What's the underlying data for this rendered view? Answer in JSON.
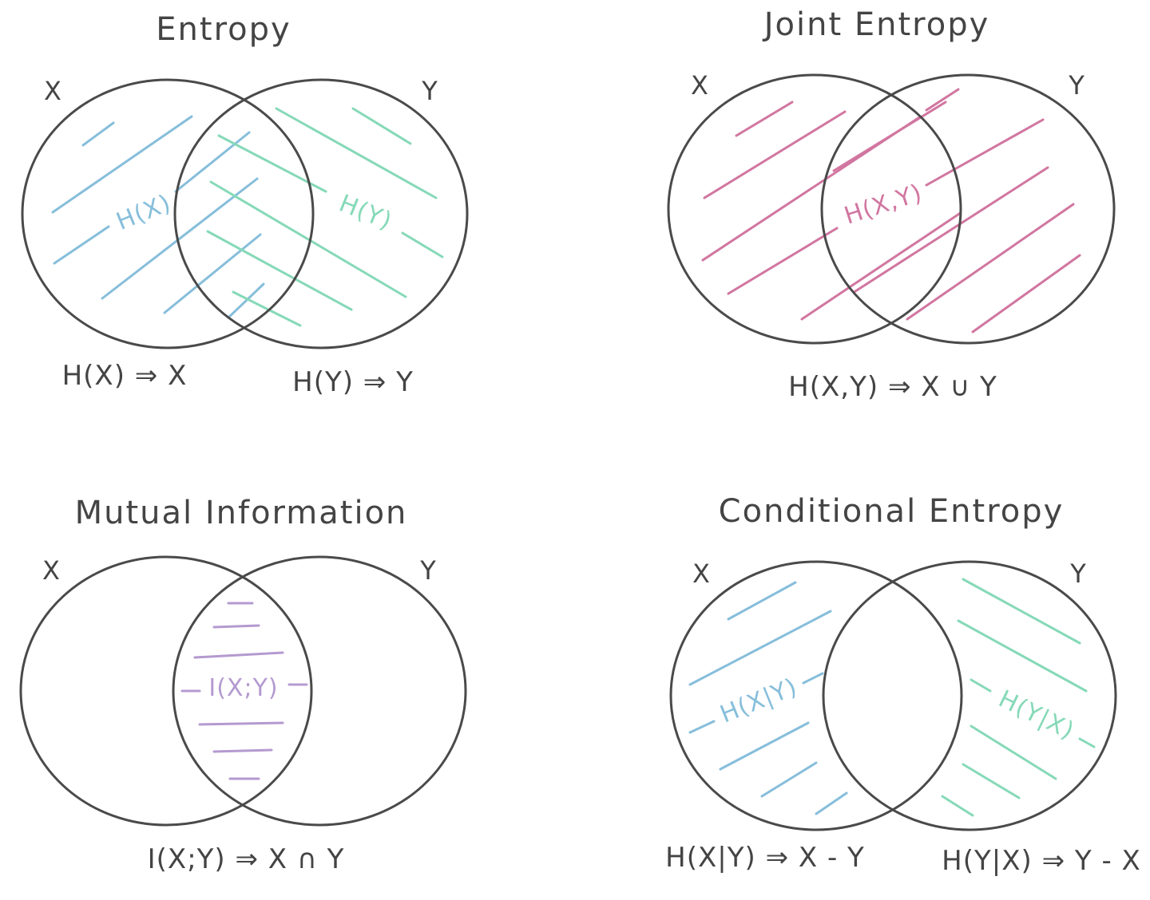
{
  "colors": {
    "outline": "#4a4a4a",
    "text": "#444444",
    "entropy_x": "#86bedb",
    "entropy_y": "#86d9b8",
    "joint": "#d176a0",
    "mutual": "#b49ad0"
  },
  "panels": {
    "entropy": {
      "title": "Entropy",
      "set_x": "X",
      "set_y": "Y",
      "label_x": "H(X)",
      "label_y": "H(Y)",
      "formula_x": "H(X) ⇒ X",
      "formula_y": "H(Y) ⇒ Y"
    },
    "joint": {
      "title": "Joint Entropy",
      "set_x": "X",
      "set_y": "Y",
      "label": "H(X,Y)",
      "formula": "H(X,Y) ⇒ X ∪ Y"
    },
    "mutual": {
      "title": "Mutual Information",
      "set_x": "X",
      "set_y": "Y",
      "label": "I(X;Y)",
      "formula": "I(X;Y) ⇒ X ∩ Y"
    },
    "conditional": {
      "title": "Conditional Entropy",
      "set_x": "X",
      "set_y": "Y",
      "label_x": "H(X|Y)",
      "label_y": "H(Y|X)",
      "formula_x": "H(X|Y) ⇒ X - Y",
      "formula_y": "H(Y|X) ⇒ Y - X"
    }
  }
}
